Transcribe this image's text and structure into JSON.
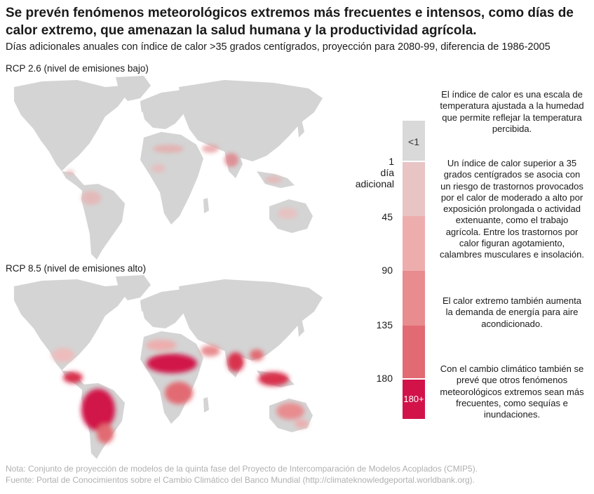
{
  "title": "Se prevén fenómenos meteorológicos extremos más frecuentes e intensos, como días de calor extremo, que amenazan la salud humana y la productividad agrícola.",
  "subtitle": "Días adicionales anuales con índice de calor >35 grados centígrados, proyección para 2080-99, diferencia de 1986-2005",
  "maps": [
    {
      "label": "RCP 2.6 (nivel de emisiones bajo)",
      "intensity": "low"
    },
    {
      "label": "RCP 8.5 (nivel de emisiones alto)",
      "intensity": "high"
    }
  ],
  "legend": {
    "labels": {
      "lt1": "<1",
      "one_day": [
        "1",
        "día",
        "adicional"
      ],
      "v45": "45",
      "v90": "90",
      "v135": "135",
      "v180": "180",
      "v180plus": "180+"
    },
    "colors": [
      "#d9d9d9",
      "#e8c4c4",
      "#eeadad",
      "#e88c8f",
      "#e26a72",
      "#d9334d",
      "#d1134a"
    ]
  },
  "notes": [
    "El índice de calor es una escala de temperatura ajustada a la humedad que permite reflejar la temperatura percibida.",
    "Un índice de calor superior a 35 grados centígrados se asocia con un riesgo de trastornos provocados por el calor de moderado a alto por exposición prolongada o actividad extenuante, como el trabajo agrícola. Entre los trastornos por calor figuran agotamiento, calambres musculares e insolación.",
    "El calor extremo también aumenta la demanda de energía para aire acondicionado.",
    "Con el cambio climático también se prevé que otros fenómenos meteorológicos extremos sean más frecuentes, como sequías e inundaciones."
  ],
  "footnotes": {
    "nota": "Nota: Conjunto de proyección de modelos de la quinta fase del Proyecto de Intercomparación de Modelos Acoplados (CMIP5).",
    "fuente": "Fuente: Portal de Conocimientos sobre el Cambio Climático del Banco Mundial (http://climateknowledgeportal.worldbank.org)."
  },
  "land_color": "#d4d4d4"
}
